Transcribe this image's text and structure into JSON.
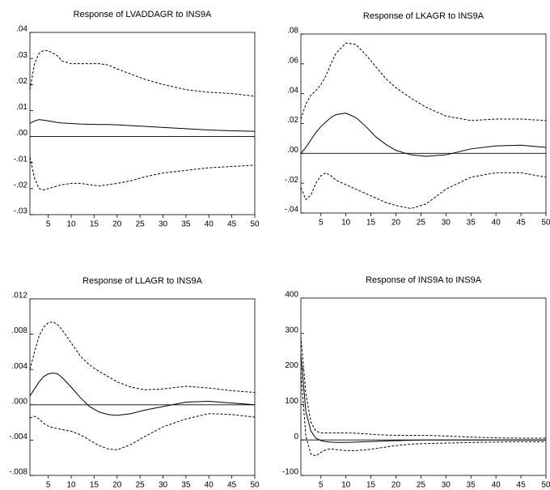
{
  "chart_data": [
    {
      "type": "line",
      "title": "Response of LVADDAGR to INS9A",
      "x": [
        1,
        2,
        3,
        4,
        5,
        6,
        7,
        8,
        10,
        12,
        14,
        16,
        18,
        20,
        23,
        26,
        30,
        35,
        40,
        45,
        50
      ],
      "xlim": [
        1,
        50
      ],
      "xticks": [
        5,
        10,
        15,
        20,
        25,
        30,
        35,
        40,
        45,
        50
      ],
      "ylim": [
        -0.03,
        0.04
      ],
      "yticks": [
        {
          "value": 0.04,
          "label": ".04"
        },
        {
          "value": 0.03,
          "label": ".03"
        },
        {
          "value": 0.02,
          "label": ".02"
        },
        {
          "value": 0.01,
          "label": ".01"
        },
        {
          "value": 0,
          "label": ".00"
        },
        {
          "value": -0.01,
          "label": "-.01"
        },
        {
          "value": -0.02,
          "label": "-.02"
        },
        {
          "value": -0.03,
          "label": "-.03"
        }
      ],
      "zero_line": true,
      "series": [
        {
          "color": "#000000",
          "dash": false,
          "values": [
            0.005,
            0.006,
            0.0065,
            0.0063,
            0.006,
            0.0057,
            0.0054,
            0.0052,
            0.005,
            0.0048,
            0.0047,
            0.0046,
            0.0046,
            0.0045,
            0.0042,
            0.0039,
            0.0035,
            0.003,
            0.0025,
            0.0022,
            0.002
          ]
        },
        {
          "color": "#000000",
          "dash": true,
          "values": [
            0.018,
            0.028,
            0.032,
            0.033,
            0.033,
            0.032,
            0.031,
            0.029,
            0.028,
            0.028,
            0.028,
            0.028,
            0.0275,
            0.026,
            0.024,
            0.022,
            0.02,
            0.018,
            0.017,
            0.0165,
            0.0155
          ]
        },
        {
          "color": "#000000",
          "dash": true,
          "values": [
            -0.008,
            -0.016,
            -0.02,
            -0.0205,
            -0.02,
            -0.0195,
            -0.019,
            -0.0185,
            -0.018,
            -0.018,
            -0.0185,
            -0.019,
            -0.0185,
            -0.018,
            -0.017,
            -0.0155,
            -0.014,
            -0.013,
            -0.012,
            -0.0115,
            -0.011
          ]
        }
      ]
    },
    {
      "type": "line",
      "title": "Response of LKAGR to INS9A",
      "x": [
        1,
        2,
        3,
        4,
        5,
        6,
        7,
        8,
        10,
        12,
        14,
        16,
        18,
        20,
        23,
        26,
        30,
        35,
        40,
        45,
        50
      ],
      "xlim": [
        1,
        50
      ],
      "xticks": [
        5,
        10,
        15,
        20,
        25,
        30,
        35,
        40,
        45,
        50
      ],
      "ylim": [
        -0.04,
        0.08
      ],
      "yticks": [
        {
          "value": 0.08,
          "label": ".08"
        },
        {
          "value": 0.06,
          "label": ".06"
        },
        {
          "value": 0.04,
          "label": ".04"
        },
        {
          "value": 0.02,
          "label": ".02"
        },
        {
          "value": 0,
          "label": ".00"
        },
        {
          "value": -0.02,
          "label": "-.02"
        },
        {
          "value": -0.04,
          "label": "-.04"
        }
      ],
      "zero_line": true,
      "series": [
        {
          "color": "#000000",
          "dash": false,
          "values": [
            0,
            0.004,
            0.009,
            0.014,
            0.018,
            0.021,
            0.024,
            0.026,
            0.027,
            0.024,
            0.018,
            0.011,
            0.006,
            0.002,
            -0.001,
            -0.002,
            -0.001,
            0.003,
            0.005,
            0.0055,
            0.004
          ]
        },
        {
          "color": "#000000",
          "dash": true,
          "values": [
            0.023,
            0.033,
            0.039,
            0.042,
            0.046,
            0.052,
            0.06,
            0.067,
            0.074,
            0.073,
            0.066,
            0.058,
            0.05,
            0.044,
            0.037,
            0.031,
            0.025,
            0.022,
            0.023,
            0.023,
            0.022
          ]
        },
        {
          "color": "#000000",
          "dash": true,
          "values": [
            -0.023,
            -0.031,
            -0.028,
            -0.02,
            -0.015,
            -0.013,
            -0.015,
            -0.018,
            -0.021,
            -0.024,
            -0.027,
            -0.03,
            -0.033,
            -0.035,
            -0.037,
            -0.034,
            -0.024,
            -0.016,
            -0.013,
            -0.013,
            -0.016
          ]
        }
      ]
    },
    {
      "type": "line",
      "title": "Response of LLAGR to INS9A",
      "x": [
        1,
        2,
        3,
        4,
        5,
        6,
        7,
        8,
        10,
        12,
        14,
        16,
        18,
        20,
        23,
        26,
        30,
        35,
        40,
        45,
        50
      ],
      "xlim": [
        1,
        50
      ],
      "xticks": [
        5,
        10,
        15,
        20,
        25,
        30,
        35,
        40,
        45,
        50
      ],
      "ylim": [
        -0.008,
        0.012
      ],
      "yticks": [
        {
          "value": 0.012,
          "label": ".012"
        },
        {
          "value": 0.008,
          "label": ".008"
        },
        {
          "value": 0.004,
          "label": ".004"
        },
        {
          "value": 0,
          "label": ".000"
        },
        {
          "value": -0.004,
          "label": "-.004"
        },
        {
          "value": -0.008,
          "label": "-.008"
        }
      ],
      "zero_line": true,
      "series": [
        {
          "color": "#000000",
          "dash": false,
          "values": [
            0.001,
            0.0018,
            0.0026,
            0.0032,
            0.0035,
            0.0036,
            0.0035,
            0.0031,
            0.002,
            0.0008,
            -0.0002,
            -0.0008,
            -0.0011,
            -0.0012,
            -0.001,
            -0.0006,
            -0.0002,
            0.0003,
            0.0004,
            0.0002,
            0
          ]
        },
        {
          "color": "#000000",
          "dash": true,
          "values": [
            0.004,
            0.006,
            0.0078,
            0.0088,
            0.0093,
            0.0094,
            0.0091,
            0.0085,
            0.007,
            0.0055,
            0.0045,
            0.0038,
            0.0032,
            0.0026,
            0.002,
            0.0017,
            0.0018,
            0.0021,
            0.0019,
            0.0016,
            0.0014
          ]
        },
        {
          "color": "#000000",
          "dash": true,
          "values": [
            -0.0015,
            -0.0013,
            -0.0016,
            -0.0021,
            -0.0024,
            -0.0026,
            -0.0027,
            -0.0028,
            -0.003,
            -0.0034,
            -0.004,
            -0.0046,
            -0.005,
            -0.0051,
            -0.0045,
            -0.0036,
            -0.0025,
            -0.0016,
            -0.001,
            -0.0011,
            -0.0014
          ]
        }
      ]
    },
    {
      "type": "line",
      "title": "Response of INS9A to INS9A",
      "x": [
        1,
        2,
        3,
        4,
        5,
        6,
        7,
        8,
        10,
        12,
        14,
        16,
        18,
        20,
        23,
        26,
        30,
        35,
        40,
        45,
        50
      ],
      "xlim": [
        1,
        50
      ],
      "xticks": [
        5,
        10,
        15,
        20,
        25,
        30,
        35,
        40,
        45,
        50
      ],
      "ylim": [
        -100,
        400
      ],
      "yticks": [
        400,
        300,
        200,
        100,
        0,
        -100
      ],
      "zero_line": true,
      "series": [
        {
          "color": "#000000",
          "dash": false,
          "values": [
            240,
            80,
            25,
            5,
            -2,
            -5,
            -6,
            -7,
            -7,
            -6,
            -5,
            -4,
            -3,
            -2,
            -1,
            0,
            0,
            0,
            0,
            0,
            0
          ]
        },
        {
          "color": "#000000",
          "dash": true,
          "values": [
            290,
            130,
            50,
            25,
            20,
            20,
            20,
            20,
            20,
            19,
            17,
            15,
            14,
            13,
            13,
            13,
            11,
            8,
            6,
            5,
            5
          ]
        },
        {
          "color": "#000000",
          "dash": true,
          "values": [
            190,
            10,
            -40,
            -45,
            -35,
            -28,
            -25,
            -27,
            -30,
            -30,
            -28,
            -24,
            -20,
            -16,
            -12,
            -10,
            -9,
            -7,
            -6,
            -5,
            -5
          ]
        }
      ]
    }
  ]
}
